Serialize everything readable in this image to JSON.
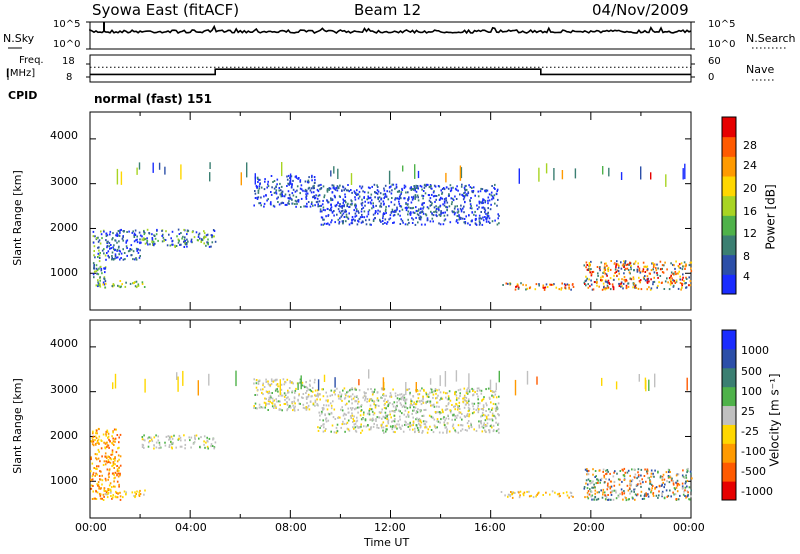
{
  "header": {
    "station": "Syowa East (fitACF)",
    "beam": "Beam 12",
    "date": "04/Nov/2009"
  },
  "top_panels": {
    "noise": {
      "left_label": "N.Sky",
      "right_label": "N.Search",
      "left_ticks": [
        "10^5",
        "10^0"
      ],
      "right_ticks": [
        "10^5",
        "10^0"
      ]
    },
    "freq": {
      "left_label_1": "Freq.",
      "left_label_2": "[MHz]",
      "right_label": "Nave",
      "left_ticks": [
        "18",
        "8"
      ],
      "right_ticks": [
        "60",
        "0"
      ],
      "freq_steps": [
        {
          "from": 0,
          "to": 5,
          "value": 10
        },
        {
          "from": 5,
          "to": 18,
          "value": 14
        },
        {
          "from": 18,
          "to": 24,
          "value": 10
        }
      ],
      "nave_level": 45
    },
    "cpid": {
      "label": "CPID",
      "value": "normal (fast) 151"
    }
  },
  "chart_data": [
    {
      "type": "heatmap",
      "name": "power",
      "ylabel": "Slant Range [km]",
      "y_ticks": [
        "1000",
        "2000",
        "3000",
        "4000"
      ],
      "ylim": [
        180,
        4600
      ],
      "xlim": [
        0,
        24
      ],
      "colorbar": {
        "label": "Power [dB]",
        "ticks": [
          "4",
          "8",
          "12",
          "16",
          "20",
          "24",
          "28"
        ],
        "colors": [
          "#1a2cff",
          "#2c4fa8",
          "#3b7f72",
          "#4fb24a",
          "#a8d423",
          "#ffd700",
          "#ff9a00",
          "#ff5a00",
          "#e60000"
        ]
      },
      "regions": [
        {
          "t": [
            0.1,
            0.6
          ],
          "r": [
            700,
            2000
          ],
          "level": "mid"
        },
        {
          "t": [
            0.6,
            2.0
          ],
          "r": [
            1300,
            2000
          ],
          "level": "low"
        },
        {
          "t": [
            0.3,
            2.2
          ],
          "r": [
            700,
            850
          ],
          "level": "high"
        },
        {
          "t": [
            2.0,
            5.0
          ],
          "r": [
            1600,
            2000
          ],
          "level": "mid"
        },
        {
          "t": [
            6.5,
            9.0
          ],
          "r": [
            2500,
            3200
          ],
          "level": "low"
        },
        {
          "t": [
            9.0,
            16.3
          ],
          "r": [
            2100,
            3000
          ],
          "level": "low"
        },
        {
          "t": [
            16.4,
            19.3
          ],
          "r": [
            650,
            800
          ],
          "level": "strong"
        },
        {
          "t": [
            19.7,
            24.0
          ],
          "r": [
            650,
            1300
          ],
          "level": "strong"
        }
      ]
    },
    {
      "type": "heatmap",
      "name": "velocity",
      "ylabel": "Slant Range [km]",
      "y_ticks": [
        "1000",
        "2000",
        "3000",
        "4000"
      ],
      "ylim": [
        180,
        4600
      ],
      "xlim": [
        0,
        24
      ],
      "x_ticks": [
        "00:00",
        "04:00",
        "08:00",
        "12:00",
        "16:00",
        "20:00",
        "00:00"
      ],
      "xlabel": "Time UT",
      "colorbar": {
        "label": "Velocity [m s⁻¹]",
        "ticks": [
          "1000",
          "500",
          "100",
          "25",
          "-25",
          "-100",
          "-500",
          "-1000"
        ],
        "colors": [
          "#1a2cff",
          "#2c4fa8",
          "#3b7f72",
          "#4fb24a",
          "#c0c0c0",
          "#ffd700",
          "#ff9a00",
          "#ff5a00",
          "#e60000"
        ]
      },
      "regions": [
        {
          "t": [
            0.0,
            1.2
          ],
          "r": [
            600,
            2200
          ],
          "level": "neg"
        },
        {
          "t": [
            0.5,
            2.2
          ],
          "r": [
            650,
            820
          ],
          "level": "neg_small"
        },
        {
          "t": [
            2.0,
            5.0
          ],
          "r": [
            1750,
            2050
          ],
          "level": "zero"
        },
        {
          "t": [
            6.5,
            9.0
          ],
          "r": [
            2600,
            3300
          ],
          "level": "zero"
        },
        {
          "t": [
            9.0,
            16.3
          ],
          "r": [
            2100,
            3100
          ],
          "level": "zero"
        },
        {
          "t": [
            16.4,
            19.3
          ],
          "r": [
            650,
            800
          ],
          "level": "neg_small"
        },
        {
          "t": [
            19.7,
            24.0
          ],
          "r": [
            600,
            1300
          ],
          "level": "mixed"
        }
      ]
    }
  ]
}
